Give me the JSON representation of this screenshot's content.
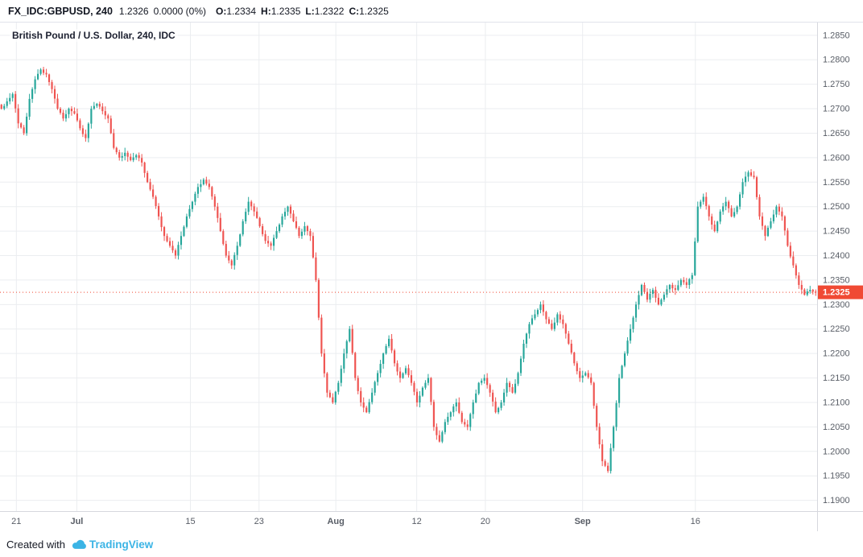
{
  "header": {
    "symbol": "FX_IDC:GBPUSD, 240",
    "last": "1.2326",
    "change": "0.0000 (0%)",
    "o_label": "O:",
    "o": "1.2334",
    "h_label": "H:",
    "h": "1.2335",
    "l_label": "L:",
    "l": "1.2322",
    "c_label": "C:",
    "c": "1.2325"
  },
  "chart": {
    "legend": "British Pound / U.S. Dollar, 240, IDC",
    "price_label": "1.2325"
  },
  "footer": {
    "created_with": "Created with",
    "brand": "TradingView"
  },
  "chart_data": {
    "type": "candlestick",
    "title": "British Pound / U.S. Dollar, 240, IDC",
    "symbol": "GBP/USD",
    "interval": "240",
    "last": 1.2325,
    "last_label": "1.2325",
    "ohlc": {
      "open": 1.2334,
      "high": 1.2335,
      "low": 1.2322,
      "close": 1.2325,
      "quote": 1.2326,
      "change": "0.0000 (0%)"
    },
    "ylim": [
      1.1878,
      1.2876
    ],
    "y_tick_labels": [
      "1.2850",
      "1.2800",
      "1.2750",
      "1.2700",
      "1.2650",
      "1.2600",
      "1.2550",
      "1.2500",
      "1.2450",
      "1.2400",
      "1.2350",
      "1.2300",
      "1.2250",
      "1.2200",
      "1.2150",
      "1.2100",
      "1.2050",
      "1.2000",
      "1.1950",
      "1.1900"
    ],
    "x_ticks": [
      {
        "label": "21",
        "f": 0.02,
        "major": false
      },
      {
        "label": "Jul",
        "f": 0.094,
        "major": true
      },
      {
        "label": "15",
        "f": 0.233,
        "major": false
      },
      {
        "label": "23",
        "f": 0.317,
        "major": false
      },
      {
        "label": "Aug",
        "f": 0.411,
        "major": true
      },
      {
        "label": "12",
        "f": 0.51,
        "major": false
      },
      {
        "label": "20",
        "f": 0.594,
        "major": false
      },
      {
        "label": "Sep",
        "f": 0.713,
        "major": true
      },
      {
        "label": "16",
        "f": 0.851,
        "major": false
      }
    ],
    "closes": [
      1.27,
      1.2715,
      1.273,
      1.267,
      1.265,
      1.272,
      1.276,
      1.278,
      1.277,
      1.274,
      1.27,
      1.268,
      1.27,
      1.269,
      1.266,
      1.264,
      1.27,
      1.271,
      1.2695,
      1.268,
      1.262,
      1.26,
      1.261,
      1.2595,
      1.2605,
      1.259,
      1.255,
      1.252,
      1.248,
      1.244,
      1.242,
      1.24,
      1.244,
      1.248,
      1.251,
      1.254,
      1.2555,
      1.254,
      1.25,
      1.245,
      1.24,
      1.238,
      1.242,
      1.247,
      1.251,
      1.249,
      1.246,
      1.243,
      1.242,
      1.245,
      1.248,
      1.25,
      1.247,
      1.244,
      1.246,
      1.244,
      1.235,
      1.22,
      1.212,
      1.21,
      1.214,
      1.22,
      1.225,
      1.215,
      1.21,
      1.208,
      1.212,
      1.216,
      1.22,
      1.223,
      1.218,
      1.215,
      1.217,
      1.214,
      1.21,
      1.213,
      1.215,
      1.205,
      1.202,
      1.206,
      1.208,
      1.21,
      1.206,
      1.205,
      1.21,
      1.214,
      1.215,
      1.212,
      1.208,
      1.21,
      1.214,
      1.212,
      1.216,
      1.222,
      1.226,
      1.228,
      1.23,
      1.227,
      1.225,
      1.228,
      1.226,
      1.222,
      1.218,
      1.215,
      1.216,
      1.214,
      1.205,
      1.198,
      1.196,
      1.205,
      1.215,
      1.22,
      1.225,
      1.23,
      1.234,
      1.231,
      1.233,
      1.23,
      1.232,
      1.234,
      1.233,
      1.235,
      1.234,
      1.236,
      1.25,
      1.252,
      1.248,
      1.245,
      1.249,
      1.251,
      1.248,
      1.25,
      1.255,
      1.257,
      1.256,
      1.248,
      1.244,
      1.247,
      1.25,
      1.248,
      1.242,
      1.238,
      1.234,
      1.232,
      1.233,
      1.2325
    ],
    "colors": {
      "up": "#26a69a",
      "down": "#ef5350",
      "last_line": "#f04a34",
      "grid": "#ebedf0",
      "axis_border": "#d6d8de",
      "axis_text": "#585d66"
    },
    "legend_position": "top-left",
    "grid": true
  }
}
